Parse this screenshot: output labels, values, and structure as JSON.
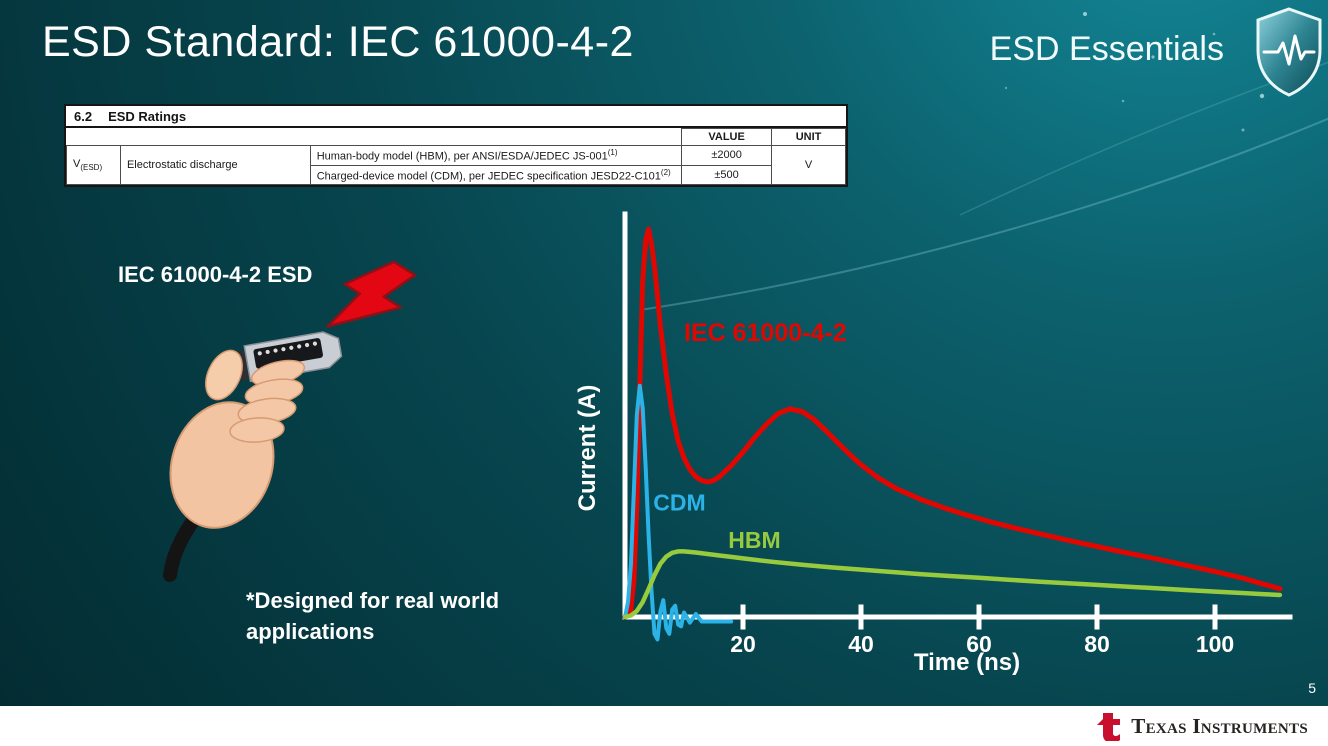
{
  "header": {
    "title": "ESD Standard: IEC 61000-4-2",
    "program": "ESD Essentials"
  },
  "ratings_table": {
    "section_number": "6.2",
    "section_title": "ESD Ratings",
    "value_header": "VALUE",
    "unit_header": "UNIT",
    "symbol_main": "V",
    "symbol_sub": "(ESD)",
    "parameter": "Electrostatic discharge",
    "rows": [
      {
        "description": "Human-body model (HBM), per ANSI/ESDA/JEDEC JS-001",
        "sup": "(1)",
        "value": "±2000"
      },
      {
        "description": "Charged-device model (CDM), per JEDEC specification JESD22-C101",
        "sup": "(2)",
        "value": "±500"
      }
    ],
    "unit": "V"
  },
  "left_panel": {
    "heading": "IEC 61000-4-2 ESD",
    "note": "*Designed for real world\napplications"
  },
  "footer": {
    "logo_text": "Texas Instruments",
    "page_number": "5"
  },
  "colors": {
    "iec_red": "#e10600",
    "cdm_cyan": "#2bb3e8",
    "hbm_green": "#97ca3d",
    "slide_teal": "#0b5f6b"
  },
  "chart_data": {
    "type": "line",
    "title": "",
    "xlabel": "Time (ns)",
    "ylabel": "Current (A)",
    "xlim": [
      0,
      112
    ],
    "ylim": [
      -0.08,
      1.05
    ],
    "xticks": [
      20,
      40,
      60,
      80,
      100
    ],
    "grid": false,
    "legend_position": "inline-labels",
    "series": [
      {
        "name": "IEC 61000-4-2",
        "color": "#e10600",
        "width": 5,
        "label": {
          "x": 10,
          "y": 0.74,
          "size": 25
        },
        "x": [
          0,
          1,
          1.5,
          2,
          2.5,
          3,
          3.5,
          4,
          4.5,
          5,
          5.5,
          6,
          7,
          8,
          9,
          10,
          11,
          12,
          13,
          14,
          15,
          16,
          18,
          20,
          22,
          24,
          26,
          28,
          30,
          32,
          34,
          36,
          38,
          40,
          43,
          46,
          50,
          54,
          58,
          62,
          66,
          70,
          75,
          80,
          85,
          90,
          95,
          100,
          105,
          108,
          111
        ],
        "y": [
          0,
          0.02,
          0.1,
          0.3,
          0.62,
          0.9,
          1.01,
          1.04,
          1.0,
          0.94,
          0.86,
          0.78,
          0.65,
          0.545,
          0.472,
          0.426,
          0.396,
          0.376,
          0.366,
          0.362,
          0.366,
          0.376,
          0.406,
          0.442,
          0.482,
          0.517,
          0.546,
          0.558,
          0.551,
          0.53,
          0.5,
          0.468,
          0.437,
          0.408,
          0.372,
          0.344,
          0.316,
          0.293,
          0.273,
          0.255,
          0.239,
          0.224,
          0.206,
          0.189,
          0.172,
          0.156,
          0.139,
          0.122,
          0.103,
          0.089,
          0.076
        ]
      },
      {
        "name": "CDM",
        "color": "#2bb3e8",
        "width": 4,
        "label": {
          "x": 4.8,
          "y": 0.285,
          "size": 23
        },
        "x": [
          0,
          0.5,
          1,
          1.5,
          2,
          2.5,
          3,
          3.5,
          4,
          4.5,
          5,
          5.5,
          6,
          6.5,
          7,
          7.5,
          8,
          8.5,
          9,
          9.5,
          10,
          11,
          12,
          13,
          14,
          16,
          18
        ],
        "y": [
          0,
          0.04,
          0.14,
          0.34,
          0.54,
          0.62,
          0.56,
          0.4,
          0.22,
          0.07,
          -0.045,
          -0.06,
          0.015,
          0.045,
          -0.03,
          -0.045,
          0.02,
          0.03,
          -0.02,
          -0.025,
          0.012,
          -0.015,
          0.008,
          -0.012,
          -0.012,
          -0.012,
          -0.012
        ]
      },
      {
        "name": "HBM",
        "color": "#97ca3d",
        "width": 4.5,
        "label": {
          "x": 17.5,
          "y": 0.185,
          "size": 23
        },
        "x": [
          0,
          1,
          2,
          3,
          4,
          5,
          6,
          7,
          8,
          9,
          10,
          12,
          14,
          16,
          18,
          20,
          25,
          30,
          35,
          40,
          45,
          50,
          55,
          60,
          65,
          70,
          75,
          80,
          85,
          90,
          95,
          100,
          105,
          108,
          111
        ],
        "y": [
          0,
          0.004,
          0.016,
          0.04,
          0.075,
          0.112,
          0.143,
          0.162,
          0.172,
          0.176,
          0.176,
          0.173,
          0.169,
          0.165,
          0.161,
          0.157,
          0.148,
          0.14,
          0.133,
          0.127,
          0.121,
          0.115,
          0.11,
          0.105,
          0.1,
          0.095,
          0.0905,
          0.086,
          0.0815,
          0.077,
          0.0725,
          0.068,
          0.064,
          0.0615,
          0.059
        ]
      }
    ]
  }
}
